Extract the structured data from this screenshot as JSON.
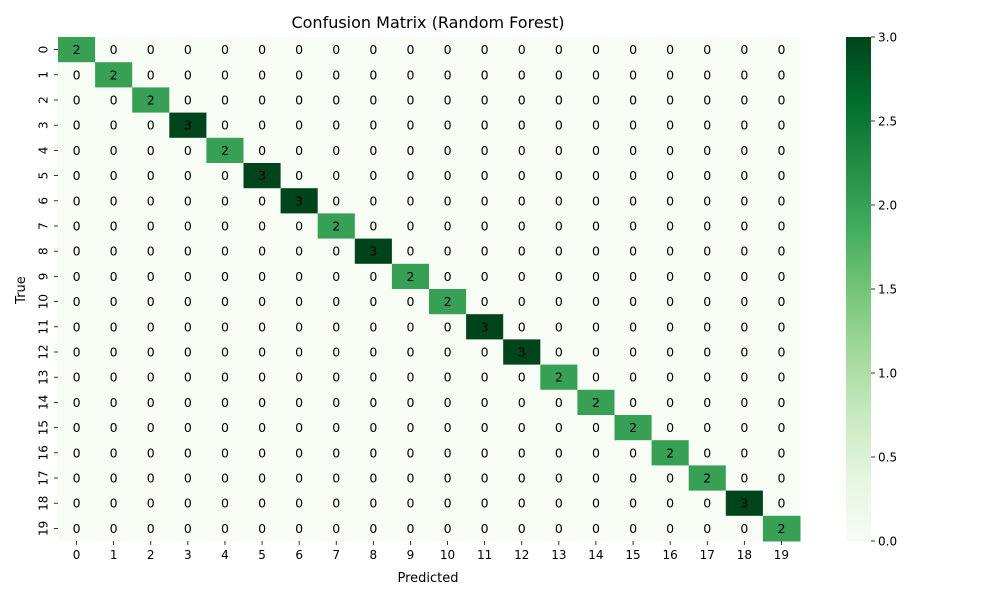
{
  "chart_data": {
    "type": "heatmap",
    "title": "Confusion Matrix (Random Forest)",
    "xlabel": "Predicted",
    "ylabel": "True",
    "x_categories": [
      "0",
      "1",
      "2",
      "3",
      "4",
      "5",
      "6",
      "7",
      "8",
      "9",
      "10",
      "11",
      "12",
      "13",
      "14",
      "15",
      "16",
      "17",
      "18",
      "19"
    ],
    "y_categories": [
      "0",
      "1",
      "2",
      "3",
      "4",
      "5",
      "6",
      "7",
      "8",
      "9",
      "10",
      "11",
      "12",
      "13",
      "14",
      "15",
      "16",
      "17",
      "18",
      "19"
    ],
    "diagonal_values": [
      2,
      2,
      2,
      3,
      2,
      3,
      3,
      2,
      3,
      2,
      2,
      3,
      3,
      2,
      2,
      2,
      2,
      2,
      3,
      2
    ],
    "off_diagonal_value": 0,
    "colorbar": {
      "range": [
        0.0,
        3.0
      ],
      "ticks": [
        "0.0",
        "0.5",
        "1.0",
        "1.5",
        "2.0",
        "2.5",
        "3.0"
      ],
      "colormap": "Greens",
      "colors": [
        "#f7fcf5",
        "#e5f5e0",
        "#c7e9c0",
        "#a1d99b",
        "#74c476",
        "#41ab5d",
        "#238b45",
        "#006d2c",
        "#00441b"
      ]
    }
  }
}
